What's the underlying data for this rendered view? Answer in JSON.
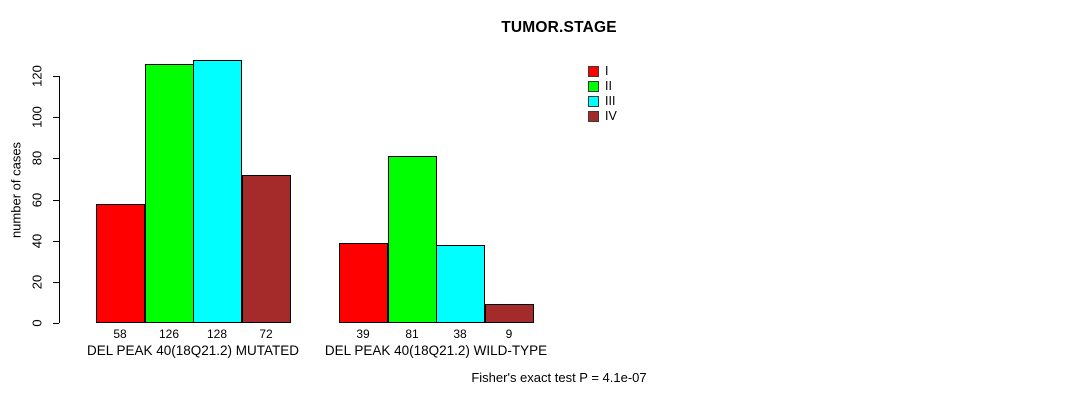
{
  "title": "TUMOR.STAGE",
  "footer": {
    "note": "Fisher's exact test P = 4.1e-07"
  },
  "chart_data": {
    "type": "bar",
    "title": "TUMOR.STAGE",
    "xlabel": "",
    "ylabel": "number of cases",
    "ylim": [
      0,
      120
    ],
    "yticks": [
      0,
      20,
      40,
      60,
      80,
      100,
      120
    ],
    "grid": "off",
    "legend_position": "right",
    "legend": [
      {
        "label": "I",
        "color": "#FF0000"
      },
      {
        "label": "II",
        "color": "#00FF00"
      },
      {
        "label": "III",
        "color": "#00FFFF"
      },
      {
        "label": "IV",
        "color": "#A52A2A"
      }
    ],
    "series_dimension": "TUMOR.STAGE",
    "categories": [
      "DEL PEAK 40(18Q21.2) MUTATED",
      "DEL PEAK 40(18Q21.2) WILD-TYPE"
    ],
    "groups": [
      {
        "label": "DEL PEAK 40(18Q21.2) MUTATED",
        "values": [
          58,
          126,
          128,
          72
        ]
      },
      {
        "label": "DEL PEAK 40(18Q21.2) WILD-TYPE",
        "values": [
          39,
          81,
          38,
          9
        ]
      }
    ],
    "bar_value_labels_shown": true,
    "annotation": "Fisher's exact test P = 4.1e-07"
  }
}
